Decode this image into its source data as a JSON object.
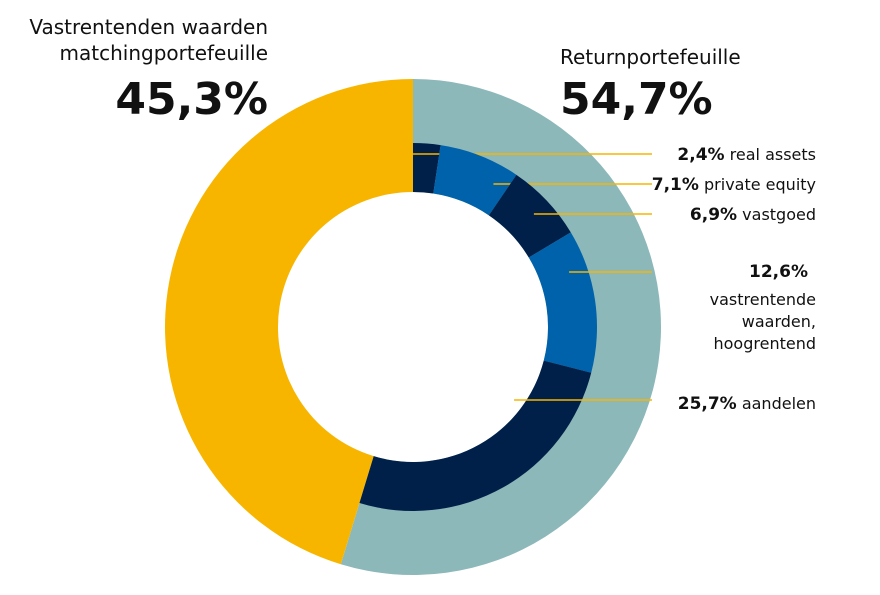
{
  "chart_data": {
    "type": "donut",
    "outer_ring": [
      {
        "name_lines": [
          "Vastrentenden waarden",
          "matchingportefeuille"
        ],
        "value": 45.3,
        "value_label": "45,3%",
        "color": "#F8B500"
      },
      {
        "name_lines": [
          "Returnportefeuille"
        ],
        "value": 54.7,
        "value_label": "54,7%",
        "color": "#8CB8BA"
      }
    ],
    "inner_ring": [
      {
        "value": 2.4,
        "value_label": "2,4%",
        "name": "real assets",
        "color": "#00204A"
      },
      {
        "value": 7.1,
        "value_label": "7,1%",
        "name": "private equity",
        "color": "#0062AA"
      },
      {
        "value": 6.9,
        "value_label": "6,9%",
        "name": "vastgoed",
        "color": "#00204A"
      },
      {
        "value": 12.6,
        "value_label": "12,6%",
        "name_lines": [
          "vastrentende",
          "waarden,",
          "hoogrentend"
        ],
        "color": "#0062AA"
      },
      {
        "value": 25.7,
        "value_label": "25,7%",
        "name": "aandelen",
        "color": "#00204A"
      }
    ],
    "leader_color": "#F8B500"
  }
}
